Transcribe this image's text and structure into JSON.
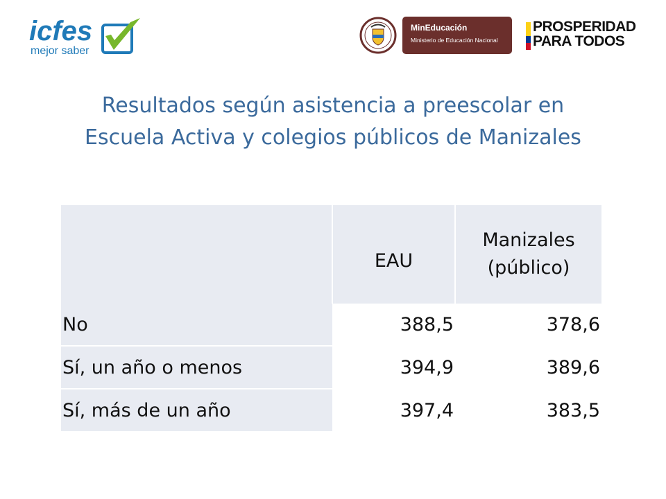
{
  "logos": {
    "icfes": {
      "name": "icfes",
      "tagline": "mejor saber"
    },
    "escudo": {
      "text": "REPÚBLICA DE COLOMBIA"
    },
    "mineducacion": {
      "title": "MinEducación",
      "subtitle": "Ministerio de Educación Nacional"
    },
    "prosperidad": {
      "line1": "PROSPERIDAD",
      "line2": "PARA TODOS"
    }
  },
  "title": {
    "line1": "Resultados según asistencia a preescolar en",
    "line2": "Escuela Activa y colegios públicos de Manizales"
  },
  "table": {
    "headers": [
      "",
      "EAU",
      "Manizales",
      "(público)"
    ],
    "rows": [
      {
        "label": "No",
        "eau": "388,5",
        "manizales": "378,6"
      },
      {
        "label": "Sí, un año o menos",
        "eau": "394,9",
        "manizales": "389,6"
      },
      {
        "label": "Sí, más de un año",
        "eau": "397,4",
        "manizales": "383,5"
      }
    ]
  },
  "colors": {
    "title": "#3b6a9c",
    "header_bg": "#e8ebf2",
    "icfes_blue": "#1f7ab8",
    "icfes_green": "#77b72b",
    "min_bg": "#6b2f2c",
    "flag_yellow": "#fcd116",
    "flag_blue": "#003893",
    "flag_red": "#ce1126"
  }
}
